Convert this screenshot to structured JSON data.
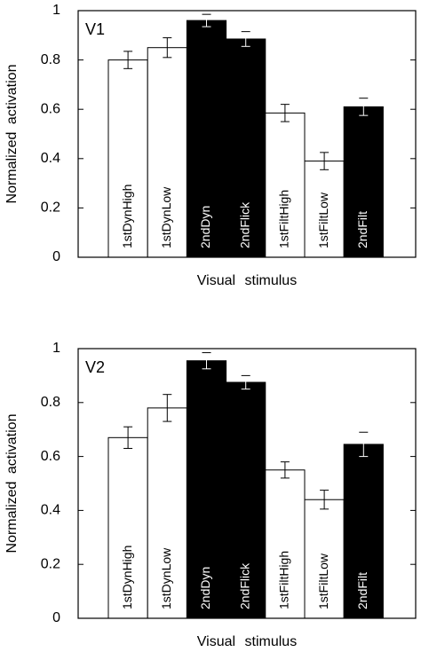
{
  "chart_data": [
    {
      "type": "bar",
      "annotation": "V1",
      "xlabel": "Visual stimulus",
      "ylabel": "Normalized activation",
      "categories": [
        "1stDynHigh",
        "1stDynLow",
        "2ndDyn",
        "2ndFlick",
        "1stFiltHigh",
        "1stFiltLow",
        "2ndFilt"
      ],
      "values": [
        0.8,
        0.85,
        0.96,
        0.885,
        0.585,
        0.39,
        0.61
      ],
      "errors": [
        0.035,
        0.04,
        0.025,
        0.03,
        0.035,
        0.035,
        0.035
      ],
      "colors": [
        "#ffffff",
        "#ffffff",
        "#000000",
        "#000000",
        "#ffffff",
        "#ffffff",
        "#000000"
      ],
      "ylim": [
        0,
        1
      ],
      "yticks": [
        0,
        0.2,
        0.4,
        0.6,
        0.8,
        1
      ]
    },
    {
      "type": "bar",
      "annotation": "V2",
      "xlabel": "Visual stimulus",
      "ylabel": "Normalized activation",
      "categories": [
        "1stDynHigh",
        "1stDynLow",
        "2ndDyn",
        "2ndFlick",
        "1stFiltHigh",
        "1stFiltLow",
        "2ndFilt"
      ],
      "values": [
        0.67,
        0.78,
        0.955,
        0.875,
        0.55,
        0.44,
        0.645
      ],
      "errors": [
        0.04,
        0.05,
        0.03,
        0.025,
        0.03,
        0.035,
        0.045
      ],
      "colors": [
        "#ffffff",
        "#ffffff",
        "#000000",
        "#000000",
        "#ffffff",
        "#ffffff",
        "#000000"
      ],
      "ylim": [
        0,
        1
      ],
      "yticks": [
        0,
        0.2,
        0.4,
        0.6,
        0.8,
        1
      ]
    }
  ]
}
